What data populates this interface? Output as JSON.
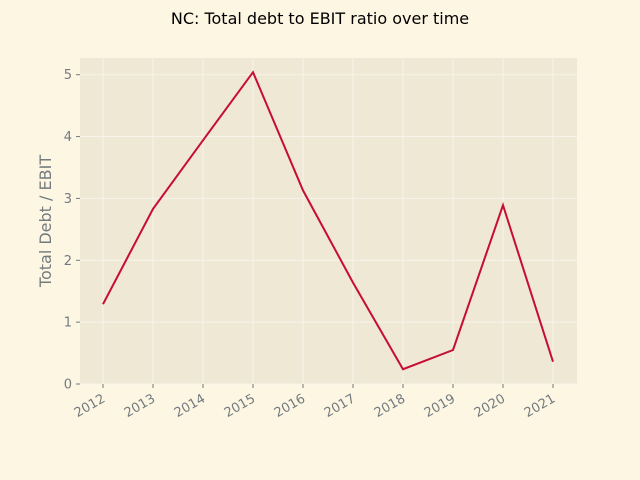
{
  "chart_data": {
    "type": "line",
    "title": "NC: Total debt to EBIT ratio over time",
    "xlabel": "",
    "ylabel": "Total Debt / EBIT",
    "categories": [
      "2012",
      "2013",
      "2014",
      "2015",
      "2016",
      "2017",
      "2018",
      "2019",
      "2020",
      "2021"
    ],
    "series": [
      {
        "values": [
          1.29,
          2.83,
          3.94,
          5.04,
          3.13,
          1.64,
          0.24,
          0.55,
          2.89,
          0.36
        ]
      }
    ],
    "yticks": [
      "0",
      "1",
      "2",
      "3",
      "4",
      "5"
    ],
    "ylim": [
      0,
      5.27
    ],
    "grid": true,
    "line_color": "#c70d32",
    "plot_background": "#eee8d5",
    "figure_background": "#fdf6e3"
  }
}
